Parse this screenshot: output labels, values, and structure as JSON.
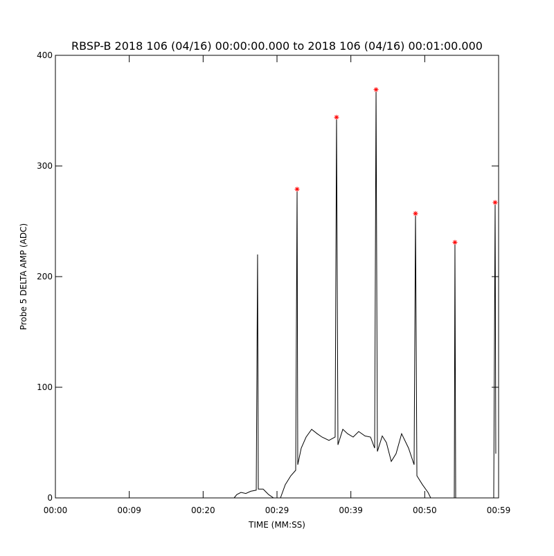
{
  "chart_data": {
    "type": "line",
    "title": "RBSP-B 2018 106 (04/16) 00:00:00.000 to 2018 106 (04/16) 00:01:00.000",
    "xlabel": "TIME (MM:SS)",
    "ylabel": "Probe 5 DELTA AMP (ADC)",
    "xlim": [
      0,
      60
    ],
    "xticks": [
      {
        "value": 0,
        "label": "00:00"
      },
      {
        "value": 10,
        "label": "00:09"
      },
      {
        "value": 20,
        "label": "00:20"
      },
      {
        "value": 30,
        "label": "00:29"
      },
      {
        "value": 40,
        "label": "00:39"
      },
      {
        "value": 50,
        "label": "00:50"
      },
      {
        "value": 60,
        "label": "00:59"
      }
    ],
    "ylim": [
      0,
      400
    ],
    "yticks": [
      0,
      100,
      200,
      300,
      400
    ],
    "grid": false,
    "series": [
      {
        "type": "line",
        "color": "#000000",
        "x": [
          24.19,
          24.56,
          25.12,
          25.78,
          26.44,
          27.19,
          27.37,
          27.47,
          28.12,
          28.87,
          29.53,
          30.47,
          31.12,
          31.87,
          32.53,
          32.72,
          32.81,
          33.28,
          33.94,
          34.69,
          35.44,
          36.09,
          37.03,
          37.87,
          38.06,
          38.25,
          38.91,
          39.56,
          40.31,
          41.06,
          41.91,
          42.66,
          43.22,
          43.41,
          43.59,
          44.25,
          44.81,
          45.47,
          46.12,
          46.87,
          47.81,
          48.56,
          48.75,
          48.94,
          49.69,
          50.44,
          50.81,
          54.0,
          54.09,
          54.19,
          59.34,
          59.53,
          59.62
        ],
        "values": [
          0,
          3,
          5,
          4,
          6,
          7,
          220,
          8,
          8,
          3,
          0,
          0,
          12,
          20,
          25,
          279,
          30,
          45,
          55,
          62,
          58,
          55,
          52,
          55,
          344,
          48,
          62,
          58,
          55,
          60,
          56,
          55,
          45,
          369,
          42,
          56,
          50,
          33,
          40,
          58,
          45,
          30,
          257,
          20,
          12,
          5,
          0,
          0,
          231,
          0,
          0,
          267,
          40
        ]
      },
      {
        "type": "scatter",
        "color": "#ff0000",
        "marker": "asterisk",
        "x": [
          32.72,
          38.06,
          43.41,
          48.75,
          54.09,
          59.53
        ],
        "values": [
          279,
          344,
          369,
          257,
          231,
          267
        ]
      }
    ]
  }
}
